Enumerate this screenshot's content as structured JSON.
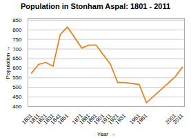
{
  "chart_data": {
    "type": "line",
    "title": "Population in Stonham Aspal: 1801 - 2011",
    "xlabel": "Year",
    "ylabel": "Population",
    "x": [
      1801,
      1811,
      1821,
      1831,
      1841,
      1851,
      1871,
      1881,
      1891,
      1901,
      1911,
      1921,
      1931,
      1951,
      1961,
      2001,
      2011
    ],
    "values": [
      575,
      620,
      630,
      610,
      775,
      815,
      705,
      720,
      720,
      670,
      620,
      525,
      525,
      515,
      420,
      555,
      605
    ],
    "color": "#e8821e",
    "xlim": [
      1796,
      2014
    ],
    "xticks": [
      1801,
      1811,
      1821,
      1831,
      1841,
      1851,
      1871,
      1881,
      1891,
      1901,
      1911,
      1921,
      1931,
      1951,
      1961,
      2001,
      2011
    ],
    "ylim": [
      400,
      860
    ],
    "yticks": [
      400,
      450,
      500,
      550,
      600,
      650,
      700,
      750,
      800,
      850
    ],
    "grid": true
  }
}
